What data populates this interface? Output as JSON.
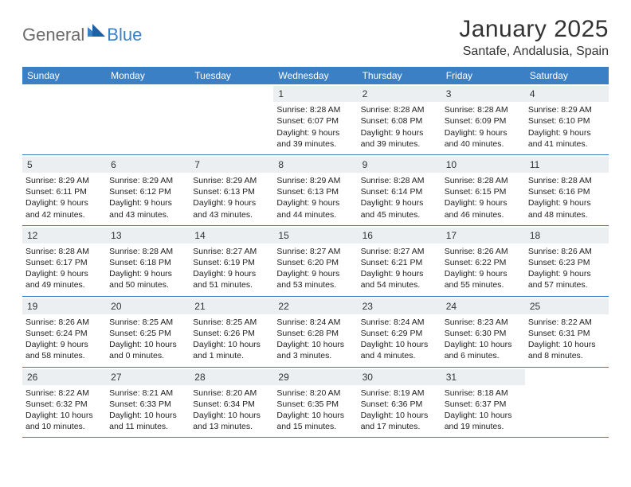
{
  "brand": {
    "part1": "General",
    "part2": "Blue"
  },
  "title": "January 2025",
  "location": "Santafe, Andalusia, Spain",
  "colors": {
    "accent": "#3b7fc4",
    "daynum_bg": "#eceff1",
    "text": "#222222",
    "logo_gray": "#6b6b6b",
    "background": "#ffffff"
  },
  "day_headers": [
    "Sunday",
    "Monday",
    "Tuesday",
    "Wednesday",
    "Thursday",
    "Friday",
    "Saturday"
  ],
  "weeks": [
    [
      {
        "n": "",
        "sunrise": "",
        "sunset": "",
        "daylight": ""
      },
      {
        "n": "",
        "sunrise": "",
        "sunset": "",
        "daylight": ""
      },
      {
        "n": "",
        "sunrise": "",
        "sunset": "",
        "daylight": ""
      },
      {
        "n": "1",
        "sunrise": "Sunrise: 8:28 AM",
        "sunset": "Sunset: 6:07 PM",
        "daylight": "Daylight: 9 hours and 39 minutes."
      },
      {
        "n": "2",
        "sunrise": "Sunrise: 8:28 AM",
        "sunset": "Sunset: 6:08 PM",
        "daylight": "Daylight: 9 hours and 39 minutes."
      },
      {
        "n": "3",
        "sunrise": "Sunrise: 8:28 AM",
        "sunset": "Sunset: 6:09 PM",
        "daylight": "Daylight: 9 hours and 40 minutes."
      },
      {
        "n": "4",
        "sunrise": "Sunrise: 8:29 AM",
        "sunset": "Sunset: 6:10 PM",
        "daylight": "Daylight: 9 hours and 41 minutes."
      }
    ],
    [
      {
        "n": "5",
        "sunrise": "Sunrise: 8:29 AM",
        "sunset": "Sunset: 6:11 PM",
        "daylight": "Daylight: 9 hours and 42 minutes."
      },
      {
        "n": "6",
        "sunrise": "Sunrise: 8:29 AM",
        "sunset": "Sunset: 6:12 PM",
        "daylight": "Daylight: 9 hours and 43 minutes."
      },
      {
        "n": "7",
        "sunrise": "Sunrise: 8:29 AM",
        "sunset": "Sunset: 6:13 PM",
        "daylight": "Daylight: 9 hours and 43 minutes."
      },
      {
        "n": "8",
        "sunrise": "Sunrise: 8:29 AM",
        "sunset": "Sunset: 6:13 PM",
        "daylight": "Daylight: 9 hours and 44 minutes."
      },
      {
        "n": "9",
        "sunrise": "Sunrise: 8:28 AM",
        "sunset": "Sunset: 6:14 PM",
        "daylight": "Daylight: 9 hours and 45 minutes."
      },
      {
        "n": "10",
        "sunrise": "Sunrise: 8:28 AM",
        "sunset": "Sunset: 6:15 PM",
        "daylight": "Daylight: 9 hours and 46 minutes."
      },
      {
        "n": "11",
        "sunrise": "Sunrise: 8:28 AM",
        "sunset": "Sunset: 6:16 PM",
        "daylight": "Daylight: 9 hours and 48 minutes."
      }
    ],
    [
      {
        "n": "12",
        "sunrise": "Sunrise: 8:28 AM",
        "sunset": "Sunset: 6:17 PM",
        "daylight": "Daylight: 9 hours and 49 minutes."
      },
      {
        "n": "13",
        "sunrise": "Sunrise: 8:28 AM",
        "sunset": "Sunset: 6:18 PM",
        "daylight": "Daylight: 9 hours and 50 minutes."
      },
      {
        "n": "14",
        "sunrise": "Sunrise: 8:27 AM",
        "sunset": "Sunset: 6:19 PM",
        "daylight": "Daylight: 9 hours and 51 minutes."
      },
      {
        "n": "15",
        "sunrise": "Sunrise: 8:27 AM",
        "sunset": "Sunset: 6:20 PM",
        "daylight": "Daylight: 9 hours and 53 minutes."
      },
      {
        "n": "16",
        "sunrise": "Sunrise: 8:27 AM",
        "sunset": "Sunset: 6:21 PM",
        "daylight": "Daylight: 9 hours and 54 minutes."
      },
      {
        "n": "17",
        "sunrise": "Sunrise: 8:26 AM",
        "sunset": "Sunset: 6:22 PM",
        "daylight": "Daylight: 9 hours and 55 minutes."
      },
      {
        "n": "18",
        "sunrise": "Sunrise: 8:26 AM",
        "sunset": "Sunset: 6:23 PM",
        "daylight": "Daylight: 9 hours and 57 minutes."
      }
    ],
    [
      {
        "n": "19",
        "sunrise": "Sunrise: 8:26 AM",
        "sunset": "Sunset: 6:24 PM",
        "daylight": "Daylight: 9 hours and 58 minutes."
      },
      {
        "n": "20",
        "sunrise": "Sunrise: 8:25 AM",
        "sunset": "Sunset: 6:25 PM",
        "daylight": "Daylight: 10 hours and 0 minutes."
      },
      {
        "n": "21",
        "sunrise": "Sunrise: 8:25 AM",
        "sunset": "Sunset: 6:26 PM",
        "daylight": "Daylight: 10 hours and 1 minute."
      },
      {
        "n": "22",
        "sunrise": "Sunrise: 8:24 AM",
        "sunset": "Sunset: 6:28 PM",
        "daylight": "Daylight: 10 hours and 3 minutes."
      },
      {
        "n": "23",
        "sunrise": "Sunrise: 8:24 AM",
        "sunset": "Sunset: 6:29 PM",
        "daylight": "Daylight: 10 hours and 4 minutes."
      },
      {
        "n": "24",
        "sunrise": "Sunrise: 8:23 AM",
        "sunset": "Sunset: 6:30 PM",
        "daylight": "Daylight: 10 hours and 6 minutes."
      },
      {
        "n": "25",
        "sunrise": "Sunrise: 8:22 AM",
        "sunset": "Sunset: 6:31 PM",
        "daylight": "Daylight: 10 hours and 8 minutes."
      }
    ],
    [
      {
        "n": "26",
        "sunrise": "Sunrise: 8:22 AM",
        "sunset": "Sunset: 6:32 PM",
        "daylight": "Daylight: 10 hours and 10 minutes."
      },
      {
        "n": "27",
        "sunrise": "Sunrise: 8:21 AM",
        "sunset": "Sunset: 6:33 PM",
        "daylight": "Daylight: 10 hours and 11 minutes."
      },
      {
        "n": "28",
        "sunrise": "Sunrise: 8:20 AM",
        "sunset": "Sunset: 6:34 PM",
        "daylight": "Daylight: 10 hours and 13 minutes."
      },
      {
        "n": "29",
        "sunrise": "Sunrise: 8:20 AM",
        "sunset": "Sunset: 6:35 PM",
        "daylight": "Daylight: 10 hours and 15 minutes."
      },
      {
        "n": "30",
        "sunrise": "Sunrise: 8:19 AM",
        "sunset": "Sunset: 6:36 PM",
        "daylight": "Daylight: 10 hours and 17 minutes."
      },
      {
        "n": "31",
        "sunrise": "Sunrise: 8:18 AM",
        "sunset": "Sunset: 6:37 PM",
        "daylight": "Daylight: 10 hours and 19 minutes."
      },
      {
        "n": "",
        "sunrise": "",
        "sunset": "",
        "daylight": ""
      }
    ]
  ]
}
